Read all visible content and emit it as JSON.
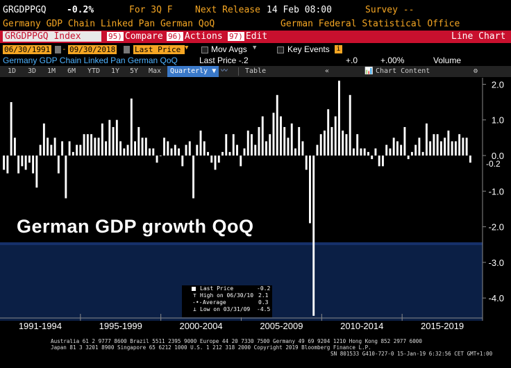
{
  "header": {
    "ticker": "GRGDPPGQ",
    "change": "-0.2%",
    "for_label": "For 3Q F",
    "next_release_label": "Next Release",
    "next_release": "14 Feb 08:00",
    "survey_label": "Survey --",
    "description": "Germany GDP Chain Linked Pan German QoQ",
    "source": "German Federal Statistical Office"
  },
  "commandbar": {
    "index": "GRGDPPGQ Index",
    "compare": {
      "num": "95)",
      "label": "Compare"
    },
    "actions": {
      "num": "96)",
      "label": "Actions"
    },
    "edit": {
      "num": "97)",
      "label": "Edit"
    },
    "view": "Line Chart"
  },
  "daterow": {
    "start": "06/30/1991",
    "end": "09/30/2018",
    "field": "Last Price",
    "mov_avgs": "Mov Avgs",
    "key_events": "Key Events"
  },
  "subtitle": {
    "series": "Germany GDP Chain Linked Pan German QoQ",
    "last_price": "Last Price -.2",
    "plus0": "+.0",
    "plus_pct": "+.00%",
    "volume": "Volume"
  },
  "toolbar": {
    "ranges": [
      "1D",
      "3D",
      "1M",
      "6M",
      "YTD",
      "1Y",
      "5Y",
      "Max"
    ],
    "period": "Quarterly",
    "table": "Table",
    "chart_content": "Chart Content"
  },
  "overlay_title": "German GDP growth QoQ",
  "legend": {
    "rows": [
      {
        "label": "Last Price",
        "value": "-0.2"
      },
      {
        "label": "High on 06/30/10",
        "value": "2.1"
      },
      {
        "label": "Average",
        "value": "0.3"
      },
      {
        "label": "Low on 03/31/09",
        "value": "-4.5"
      }
    ]
  },
  "last_value_label": "-0.2",
  "footer": {
    "line1": "Australia 61 2 9777 8600 Brazil 5511 2395 9000 Europe 44 20 7330 7500 Germany 49 69 9204 1210 Hong Kong 852 2977 6000",
    "line2": "Japan 81 3 3201 8900          Singapore 65 6212 1000          U.S. 1 212 318 2000          Copyright 2019 Bloomberg Finance L.P.",
    "line3": "SN 801533 G410-727-0 15-Jan-19  6:32:56 CET  GMT+1:00"
  },
  "colors": {
    "amber": "#f5a623",
    "blue_text": "#4fb3ff",
    "command_red": "#c8102e",
    "bars": "#ffffff",
    "lower_band": "#0b1f45"
  },
  "chart_data": {
    "type": "bar",
    "series": [
      {
        "name": "Last Price",
        "values": [
          -0.4,
          -0.5,
          1.5,
          0.5,
          -0.5,
          -0.3,
          -0.4,
          -0.2,
          -0.5,
          -0.9,
          0.3,
          0.9,
          0.5,
          0.3,
          0.5,
          -0.5,
          0.4,
          -1.2,
          0.4,
          0.1,
          0.3,
          0.3,
          0.6,
          0.6,
          0.6,
          0.5,
          0.5,
          0.9,
          0.4,
          1.0,
          0.8,
          1.0,
          0.4,
          0.2,
          0.3,
          1.6,
          0.4,
          0.8,
          0.5,
          0.5,
          0.2,
          0.2,
          -0.2,
          0.0,
          0.5,
          0.4,
          0.2,
          0.3,
          0.2,
          -0.3,
          0.3,
          0.4,
          -1.2,
          0.3,
          0.7,
          0.4,
          0.1,
          -0.2,
          -0.4,
          -0.2,
          0.1,
          0.6,
          0.1,
          0.6,
          0.3,
          -0.3,
          0.2,
          0.7,
          0.6,
          0.3,
          0.8,
          1.1,
          0.4,
          0.6,
          1.2,
          1.7,
          1.1,
          0.8,
          0.5,
          0.9,
          0.2,
          0.8,
          0.4,
          -0.4,
          -1.9,
          -4.5,
          0.3,
          0.6,
          0.7,
          1.3,
          0.8,
          1.1,
          2.1,
          0.7,
          0.6,
          1.7,
          0.2,
          0.6,
          0.2,
          0.2,
          0.1,
          -0.1,
          0.2,
          -0.3,
          -0.3,
          0.3,
          0.2,
          0.5,
          0.4,
          0.3,
          0.8,
          -0.1,
          0.1,
          0.3,
          0.5,
          0.1,
          0.9,
          0.4,
          0.6,
          0.6,
          0.4,
          0.5,
          0.7,
          0.4,
          0.4,
          0.6,
          0.5,
          0.5,
          -0.2
        ]
      }
    ],
    "x_ticks": [
      "1991-1994",
      "1995-1999",
      "2000-2004",
      "2005-2009",
      "2010-2014",
      "2015-2019"
    ],
    "y_ticks": [
      "2.0",
      "1.0",
      "0.0",
      "-1.0",
      "-2.0",
      "-3.0",
      "-4.0"
    ],
    "ylim": [
      -4.6,
      2.2
    ],
    "grid": false,
    "legend_position": "bottom-center"
  }
}
